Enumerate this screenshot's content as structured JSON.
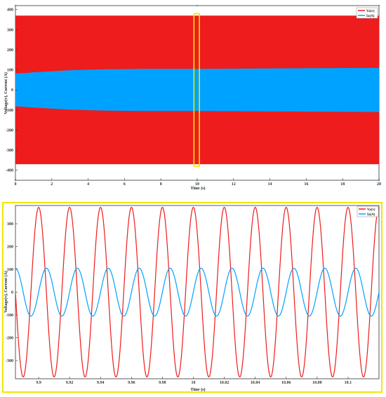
{
  "colors": {
    "voltage": "#ee1c1c",
    "current": "#00a2ff",
    "highlight": "#f2e600",
    "axis": "#333333"
  },
  "chart_data": [
    {
      "type": "area",
      "title": "",
      "xlabel": "Time (s)",
      "ylabel": "Voltage(v), Current (A)",
      "xlim": [
        0,
        20
      ],
      "ylim": [
        -450,
        420
      ],
      "xticks": [
        "0",
        "2",
        "4",
        "6",
        "8",
        "10",
        "12",
        "14",
        "16",
        "18",
        "20"
      ],
      "xtick_values": [
        0,
        2,
        4,
        6,
        8,
        10,
        12,
        14,
        16,
        18,
        20
      ],
      "yticks": [
        "400",
        "300",
        "200",
        "100",
        "0",
        "-100",
        "-200",
        "-300",
        "-400"
      ],
      "ytick_values": [
        400,
        300,
        200,
        100,
        0,
        -100,
        -200,
        -300,
        -400
      ],
      "legend": [
        "Va(v)",
        "Ia(A)"
      ],
      "legend_position": "top-right",
      "grid": false,
      "series": [
        {
          "name": "Va(v)",
          "kind": "envelope",
          "x": [
            0,
            20
          ],
          "amplitude": [
            370,
            370
          ]
        },
        {
          "name": "Ia(A)",
          "kind": "envelope",
          "x": [
            0,
            0.5,
            1,
            2,
            3,
            4,
            5,
            6,
            7,
            8,
            10,
            12,
            14,
            16,
            18,
            20
          ],
          "amplitude": [
            82,
            84,
            88,
            93,
            98,
            101,
            103,
            104,
            105,
            105,
            105,
            106,
            107,
            108,
            109,
            110
          ]
        }
      ],
      "highlight_window": [
        9.82,
        10.12
      ],
      "highlight_range": [
        -380,
        380
      ]
    },
    {
      "type": "line",
      "title": "",
      "xlabel": "Time (s)",
      "ylabel": "Voltage(v), Current (A)",
      "xlim": [
        9.885,
        10.12
      ],
      "ylim": [
        -380,
        380
      ],
      "xticks": [
        "9.9",
        "9.92",
        "9.94",
        "9.96",
        "9.98",
        "10",
        "10.02",
        "10.04",
        "10.06",
        "10.08",
        "10.1"
      ],
      "xtick_values": [
        9.9,
        9.92,
        9.94,
        9.96,
        9.98,
        10,
        10.02,
        10.04,
        10.06,
        10.08,
        10.1
      ],
      "yticks": [
        "300",
        "200",
        "100",
        "0",
        "-100",
        "-200",
        "-300"
      ],
      "ytick_values": [
        300,
        200,
        100,
        0,
        -100,
        -200,
        -300
      ],
      "legend": [
        "Va(v)",
        "Ia(A)"
      ],
      "legend_position": "top-right",
      "grid": false,
      "series": [
        {
          "name": "Va(v)",
          "kind": "sine",
          "amplitude": 372,
          "frequency_hz": 50,
          "phase_deg": 90
        },
        {
          "name": "Ia(A)",
          "kind": "sine",
          "amplitude": 105,
          "frequency_hz": 50,
          "phase_deg": 0
        }
      ]
    }
  ]
}
